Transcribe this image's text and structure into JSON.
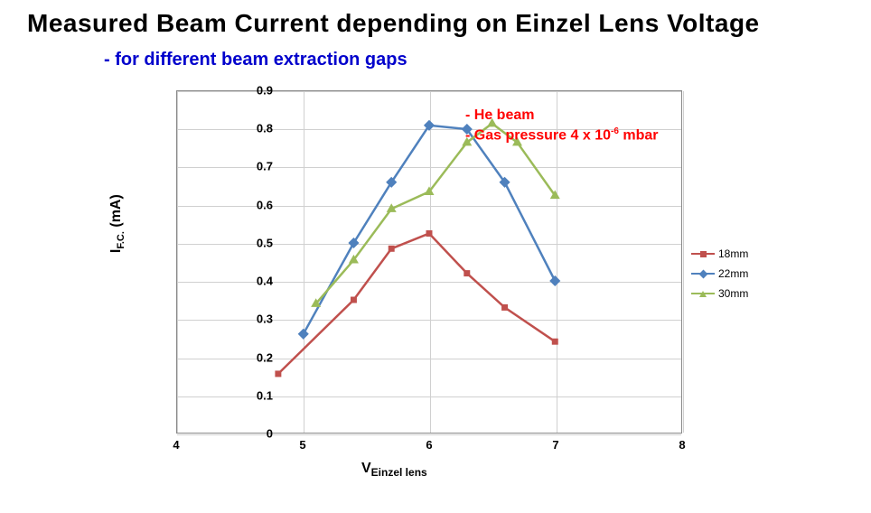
{
  "title": "Measured Beam Current depending on  Einzel Lens Voltage",
  "subtitle": "- for different beam extraction gaps",
  "annotation": {
    "line1": "- He beam",
    "line2_prefix": "- Gas pressure 4 x 10",
    "line2_exp": "-6",
    "line2_suffix": " mbar"
  },
  "chart": {
    "type": "line",
    "xlim": [
      4,
      8
    ],
    "ylim": [
      0,
      0.9
    ],
    "xticks": [
      4,
      5,
      6,
      7,
      8
    ],
    "yticks": [
      0,
      0.1,
      0.2,
      0.3,
      0.4,
      0.5,
      0.6,
      0.7,
      0.8,
      0.9
    ],
    "xlabel_main": "V",
    "xlabel_sub": "Einzel lens",
    "ylabel_main": "I",
    "ylabel_sub": "F.C.",
    "ylabel_unit": " (mA)",
    "grid_color": "#d0d0d0",
    "background_color": "#ffffff",
    "series": [
      {
        "name": "18mm",
        "color": "#c0504d",
        "marker": "square",
        "marker_size": 6,
        "line_width": 2.5,
        "x": [
          4.8,
          5.4,
          5.7,
          6.0,
          6.3,
          6.6,
          7.0
        ],
        "y": [
          0.155,
          0.35,
          0.485,
          0.525,
          0.42,
          0.33,
          0.24
        ]
      },
      {
        "name": "22mm",
        "color": "#4f81bd",
        "marker": "diamond",
        "marker_size": 7,
        "line_width": 2.5,
        "x": [
          5.0,
          5.4,
          5.7,
          6.0,
          6.3,
          6.6,
          7.0
        ],
        "y": [
          0.26,
          0.5,
          0.66,
          0.81,
          0.8,
          0.66,
          0.4
        ]
      },
      {
        "name": "30mm",
        "color": "#9bbb59",
        "marker": "triangle",
        "marker_size": 7,
        "line_width": 2.5,
        "x": [
          5.1,
          5.4,
          5.7,
          6.0,
          6.3,
          6.5,
          6.7,
          7.0
        ],
        "y": [
          0.34,
          0.455,
          0.59,
          0.635,
          0.765,
          0.815,
          0.765,
          0.625
        ]
      }
    ],
    "legend": {
      "items": [
        "18mm",
        "22mm",
        "30mm"
      ]
    },
    "title_fontsize": 28,
    "subtitle_fontsize": 20,
    "subtitle_color": "#0000cc",
    "annotation_color": "#ff0000",
    "tick_fontsize": 13,
    "label_fontsize": 16
  }
}
